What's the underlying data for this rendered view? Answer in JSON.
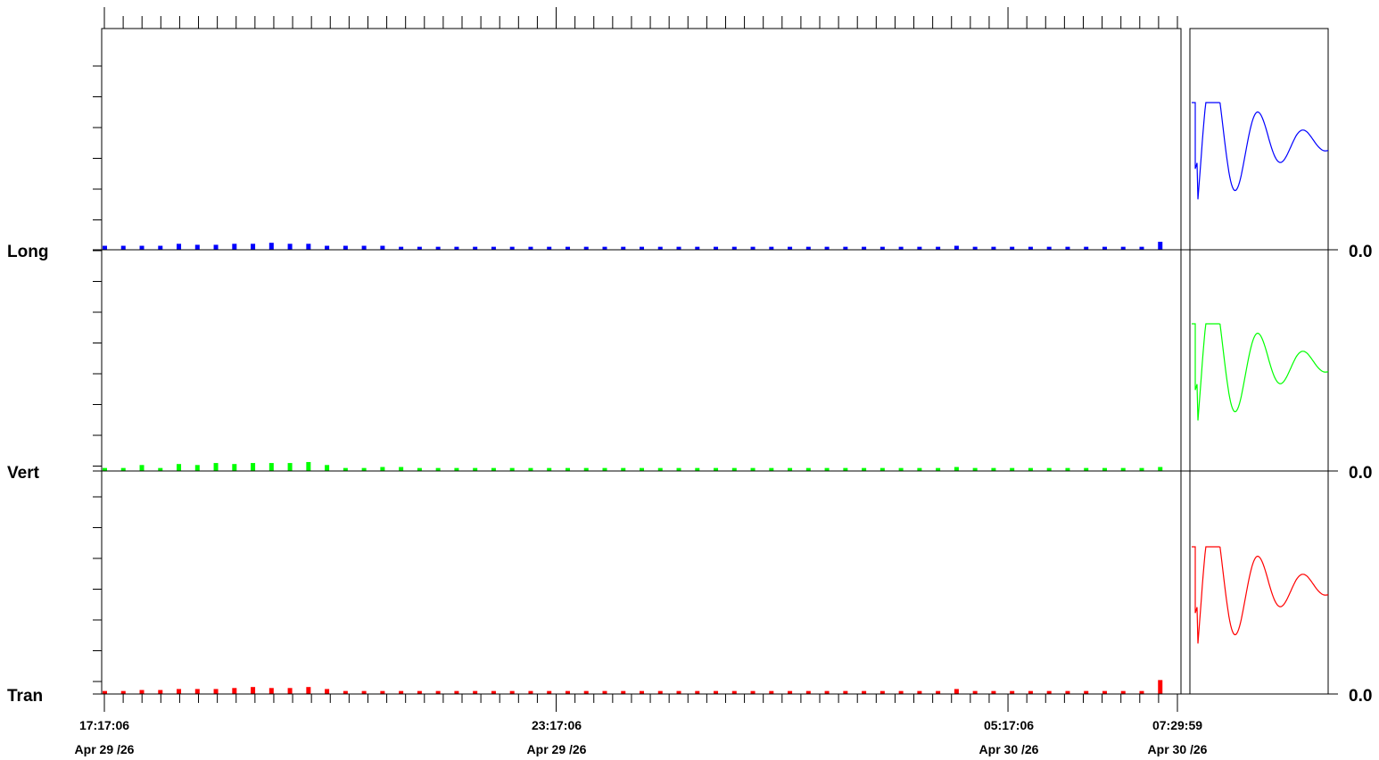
{
  "chart_data": {
    "type": "bar",
    "x_range": [
      "Apr 29 /26 17:17:06",
      "Apr 30 /26 07:29:59"
    ],
    "x_ticks": [
      {
        "time": "17:17:06",
        "date": "Apr 29 /26"
      },
      {
        "time": "23:17:06",
        "date": "Apr 29 /26"
      },
      {
        "time": "05:17:06",
        "date": "Apr 30 /26"
      },
      {
        "time": "07:29:59",
        "date": "Apr 30 /26"
      }
    ],
    "series": [
      {
        "name": "Long",
        "color": "#0000ff",
        "baseline_label": "0.0",
        "values": [
          0.02,
          0.015,
          0.02,
          0.02,
          0.02,
          0.02,
          0.015,
          0.02,
          0.02,
          0.03,
          0.025,
          0.025,
          0.025,
          0.025,
          0.025,
          0.03,
          0.025,
          0.035,
          0.03,
          0.03,
          0.035,
          0.035,
          0.03,
          0.045,
          0.03,
          0.035,
          0.02,
          0.02,
          0.02,
          0.02,
          0.02,
          0.02,
          0.02,
          0.02,
          0.02,
          0.015,
          0.015,
          0.015,
          0.015,
          0.015,
          0.015,
          0.015,
          0.015,
          0.015,
          0.015,
          0.015,
          0.015,
          0.015,
          0.015,
          0.015,
          0.015,
          0.015,
          0.015,
          0.015,
          0.015,
          0.015,
          0.015,
          0.015,
          0.015,
          0.015,
          0.015,
          0.015,
          0.015,
          0.015,
          0.015,
          0.015,
          0.015,
          0.015,
          0.015,
          0.015,
          0.015,
          0.015,
          0.015,
          0.015,
          0.015,
          0.015,
          0.015,
          0.015,
          0.015,
          0.015,
          0.015,
          0.015,
          0.015,
          0.015,
          0.015,
          0.015,
          0.015,
          0.015,
          0.015,
          0.015,
          0.015,
          0.015,
          0.015,
          0.015,
          0.015,
          0.015,
          0.015,
          0.015,
          0.015,
          0.015,
          0.015,
          0.02,
          0.015,
          0.015,
          0.015,
          0.015,
          0.015,
          0.015,
          0.015,
          0.015,
          0.015,
          0.015,
          0.015,
          0.015,
          0.015,
          0.015,
          0.015,
          0.015,
          0.015,
          0.015,
          0.02,
          0.015,
          0.015,
          0.015,
          0.015,
          0.04
        ]
      },
      {
        "name": "Vert",
        "color": "#00ff00",
        "baseline_label": "0.0",
        "values": [
          0.015,
          0.015,
          0.015,
          0.025,
          0.03,
          0.02,
          0.015,
          0.015,
          0.02,
          0.035,
          0.03,
          0.03,
          0.045,
          0.04,
          0.035,
          0.035,
          0.035,
          0.04,
          0.035,
          0.035,
          0.04,
          0.045,
          0.04,
          0.04,
          0.045,
          0.04,
          0.03,
          0.015,
          0.015,
          0.015,
          0.015,
          0.015,
          0.02,
          0.02,
          0.02,
          0.02,
          0.015,
          0.015,
          0.015,
          0.015,
          0.015,
          0.015,
          0.015,
          0.015,
          0.015,
          0.015,
          0.015,
          0.015,
          0.015,
          0.015,
          0.015,
          0.015,
          0.015,
          0.015,
          0.015,
          0.015,
          0.015,
          0.015,
          0.015,
          0.015,
          0.015,
          0.015,
          0.015,
          0.015,
          0.015,
          0.015,
          0.015,
          0.015,
          0.015,
          0.015,
          0.015,
          0.015,
          0.015,
          0.015,
          0.015,
          0.015,
          0.015,
          0.015,
          0.015,
          0.015,
          0.015,
          0.015,
          0.015,
          0.015,
          0.015,
          0.015,
          0.015,
          0.015,
          0.015,
          0.015,
          0.015,
          0.015,
          0.015,
          0.015,
          0.015,
          0.015,
          0.015,
          0.015,
          0.015,
          0.015,
          0.02,
          0.015,
          0.015,
          0.015,
          0.015,
          0.015,
          0.015,
          0.015,
          0.015,
          0.015,
          0.015,
          0.015,
          0.015,
          0.015,
          0.015,
          0.015,
          0.015,
          0.015,
          0.015,
          0.015,
          0.015,
          0.015,
          0.015,
          0.015,
          0.02
        ]
      },
      {
        "name": "Tran",
        "color": "#ff0000",
        "baseline_label": "0.0",
        "values": [
          0.015,
          0.015,
          0.015,
          0.025,
          0.02,
          0.015,
          0.015,
          0.02,
          0.02,
          0.025,
          0.025,
          0.025,
          0.025,
          0.025,
          0.03,
          0.03,
          0.035,
          0.035,
          0.03,
          0.04,
          0.03,
          0.03,
          0.03,
          0.03,
          0.035,
          0.04,
          0.025,
          0.02,
          0.015,
          0.015,
          0.015,
          0.015,
          0.015,
          0.015,
          0.015,
          0.015,
          0.015,
          0.015,
          0.015,
          0.015,
          0.015,
          0.015,
          0.015,
          0.015,
          0.015,
          0.015,
          0.015,
          0.015,
          0.015,
          0.015,
          0.015,
          0.015,
          0.015,
          0.015,
          0.015,
          0.015,
          0.015,
          0.015,
          0.015,
          0.015,
          0.015,
          0.015,
          0.015,
          0.015,
          0.015,
          0.015,
          0.015,
          0.015,
          0.015,
          0.015,
          0.015,
          0.015,
          0.015,
          0.015,
          0.015,
          0.015,
          0.015,
          0.015,
          0.015,
          0.015,
          0.015,
          0.015,
          0.015,
          0.015,
          0.015,
          0.015,
          0.015,
          0.015,
          0.015,
          0.015,
          0.015,
          0.015,
          0.015,
          0.015,
          0.015,
          0.015,
          0.015,
          0.015,
          0.015,
          0.015,
          0.025,
          0.015,
          0.015,
          0.015,
          0.015,
          0.015,
          0.015,
          0.015,
          0.015,
          0.015,
          0.015,
          0.015,
          0.015,
          0.015,
          0.015,
          0.015,
          0.015,
          0.015,
          0.015,
          0.015,
          0.015,
          0.015,
          0.015,
          0.015,
          0.07
        ]
      }
    ],
    "y_range": [
      0,
      1
    ],
    "grid": false,
    "legend": "none",
    "inset": {
      "type": "line",
      "description_none": "",
      "series": [
        "Long",
        "Vert",
        "Tran"
      ]
    }
  }
}
